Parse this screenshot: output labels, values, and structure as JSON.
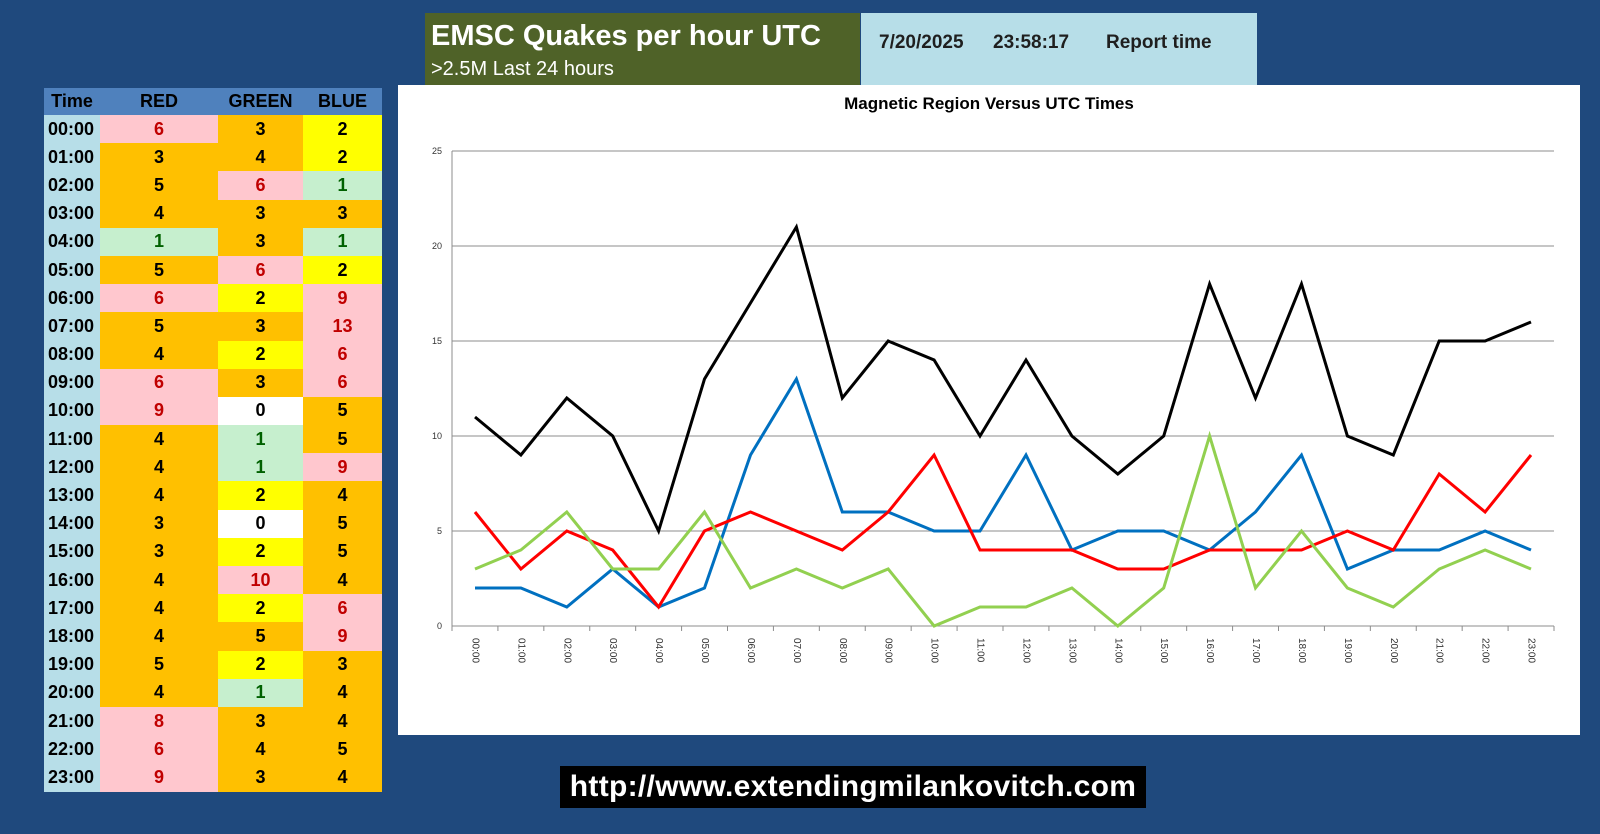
{
  "header": {
    "title": "EMSC Quakes per hour UTC",
    "subtitle": ">2.5M Last 24 hours",
    "report_date": "7/20/2025",
    "report_clock": "23:58:17",
    "report_label": "Report time"
  },
  "table": {
    "headers": [
      "Time",
      "RED",
      "GREEN",
      "BLUE"
    ],
    "cell_colors": {
      "high": "#ffc7ce",
      "mid": "#ffc000",
      "low": "#ffff00",
      "min": "#c6efce",
      "zero": "#ffffff"
    },
    "rows": [
      {
        "time": "00:00",
        "red": 6,
        "green": 3,
        "blue": 2,
        "red_level": "high",
        "green_level": "mid",
        "blue_level": "low"
      },
      {
        "time": "01:00",
        "red": 3,
        "green": 4,
        "blue": 2,
        "red_level": "mid",
        "green_level": "mid",
        "blue_level": "low"
      },
      {
        "time": "02:00",
        "red": 5,
        "green": 6,
        "blue": 1,
        "red_level": "mid",
        "green_level": "high",
        "blue_level": "min"
      },
      {
        "time": "03:00",
        "red": 4,
        "green": 3,
        "blue": 3,
        "red_level": "mid",
        "green_level": "mid",
        "blue_level": "mid"
      },
      {
        "time": "04:00",
        "red": 1,
        "green": 3,
        "blue": 1,
        "red_level": "min",
        "green_level": "mid",
        "blue_level": "min"
      },
      {
        "time": "05:00",
        "red": 5,
        "green": 6,
        "blue": 2,
        "red_level": "mid",
        "green_level": "high",
        "blue_level": "low"
      },
      {
        "time": "06:00",
        "red": 6,
        "green": 2,
        "blue": 9,
        "red_level": "high",
        "green_level": "low",
        "blue_level": "high"
      },
      {
        "time": "07:00",
        "red": 5,
        "green": 3,
        "blue": 13,
        "red_level": "mid",
        "green_level": "mid",
        "blue_level": "high"
      },
      {
        "time": "08:00",
        "red": 4,
        "green": 2,
        "blue": 6,
        "red_level": "mid",
        "green_level": "low",
        "blue_level": "high"
      },
      {
        "time": "09:00",
        "red": 6,
        "green": 3,
        "blue": 6,
        "red_level": "high",
        "green_level": "mid",
        "blue_level": "high"
      },
      {
        "time": "10:00",
        "red": 9,
        "green": 0,
        "blue": 5,
        "red_level": "high",
        "green_level": "zero",
        "blue_level": "mid"
      },
      {
        "time": "11:00",
        "red": 4,
        "green": 1,
        "blue": 5,
        "red_level": "mid",
        "green_level": "min",
        "blue_level": "mid"
      },
      {
        "time": "12:00",
        "red": 4,
        "green": 1,
        "blue": 9,
        "red_level": "mid",
        "green_level": "min",
        "blue_level": "high"
      },
      {
        "time": "13:00",
        "red": 4,
        "green": 2,
        "blue": 4,
        "red_level": "mid",
        "green_level": "low",
        "blue_level": "mid"
      },
      {
        "time": "14:00",
        "red": 3,
        "green": 0,
        "blue": 5,
        "red_level": "mid",
        "green_level": "zero",
        "blue_level": "mid"
      },
      {
        "time": "15:00",
        "red": 3,
        "green": 2,
        "blue": 5,
        "red_level": "mid",
        "green_level": "low",
        "blue_level": "mid"
      },
      {
        "time": "16:00",
        "red": 4,
        "green": 10,
        "blue": 4,
        "red_level": "mid",
        "green_level": "high",
        "blue_level": "mid"
      },
      {
        "time": "17:00",
        "red": 4,
        "green": 2,
        "blue": 6,
        "red_level": "mid",
        "green_level": "low",
        "blue_level": "high"
      },
      {
        "time": "18:00",
        "red": 4,
        "green": 5,
        "blue": 9,
        "red_level": "mid",
        "green_level": "mid",
        "blue_level": "high"
      },
      {
        "time": "19:00",
        "red": 5,
        "green": 2,
        "blue": 3,
        "red_level": "mid",
        "green_level": "low",
        "blue_level": "mid"
      },
      {
        "time": "20:00",
        "red": 4,
        "green": 1,
        "blue": 4,
        "red_level": "mid",
        "green_level": "min",
        "blue_level": "mid"
      },
      {
        "time": "21:00",
        "red": 8,
        "green": 3,
        "blue": 4,
        "red_level": "high",
        "green_level": "mid",
        "blue_level": "mid"
      },
      {
        "time": "22:00",
        "red": 6,
        "green": 4,
        "blue": 5,
        "red_level": "high",
        "green_level": "mid",
        "blue_level": "mid"
      },
      {
        "time": "23:00",
        "red": 9,
        "green": 3,
        "blue": 4,
        "red_level": "high",
        "green_level": "mid",
        "blue_level": "mid"
      }
    ]
  },
  "chart_data": {
    "type": "line",
    "title": "Magnetic Region Versus UTC Times",
    "xlabel": "",
    "ylabel": "",
    "ylim": [
      0,
      25
    ],
    "yticks": [
      0,
      5,
      10,
      15,
      20,
      25
    ],
    "grid": true,
    "legend": "none",
    "categories": [
      "00:00",
      "01:00",
      "02:00",
      "03:00",
      "04:00",
      "05:00",
      "06:00",
      "07:00",
      "08:00",
      "09:00",
      "10:00",
      "11:00",
      "12:00",
      "13:00",
      "14:00",
      "15:00",
      "16:00",
      "17:00",
      "18:00",
      "19:00",
      "20:00",
      "21:00",
      "22:00",
      "23:00"
    ],
    "series": [
      {
        "color": "#000000",
        "values": [
          11,
          9,
          12,
          10,
          5,
          13,
          17,
          21,
          12,
          15,
          14,
          10,
          14,
          10,
          8,
          10,
          18,
          12,
          18,
          10,
          9,
          15,
          15,
          16
        ]
      },
      {
        "color": "#0070c0",
        "values": [
          2,
          2,
          1,
          3,
          1,
          2,
          9,
          13,
          6,
          6,
          5,
          5,
          9,
          4,
          5,
          5,
          4,
          6,
          9,
          3,
          4,
          4,
          5,
          4
        ]
      },
      {
        "color": "#ff0000",
        "values": [
          6,
          3,
          5,
          4,
          1,
          5,
          6,
          5,
          4,
          6,
          9,
          4,
          4,
          4,
          3,
          3,
          4,
          4,
          4,
          5,
          4,
          8,
          6,
          9
        ]
      },
      {
        "color": "#92d050",
        "values": [
          3,
          4,
          6,
          3,
          3,
          6,
          2,
          3,
          2,
          3,
          0,
          1,
          1,
          2,
          0,
          2,
          10,
          2,
          5,
          2,
          1,
          3,
          4,
          3
        ]
      }
    ]
  },
  "footer": {
    "url": "http://www.extendingmilankovitch.com"
  },
  "colors": {
    "background": "#1f497d",
    "text_high": "#c00000",
    "text_min": "#006100",
    "text_default": "#000000"
  }
}
